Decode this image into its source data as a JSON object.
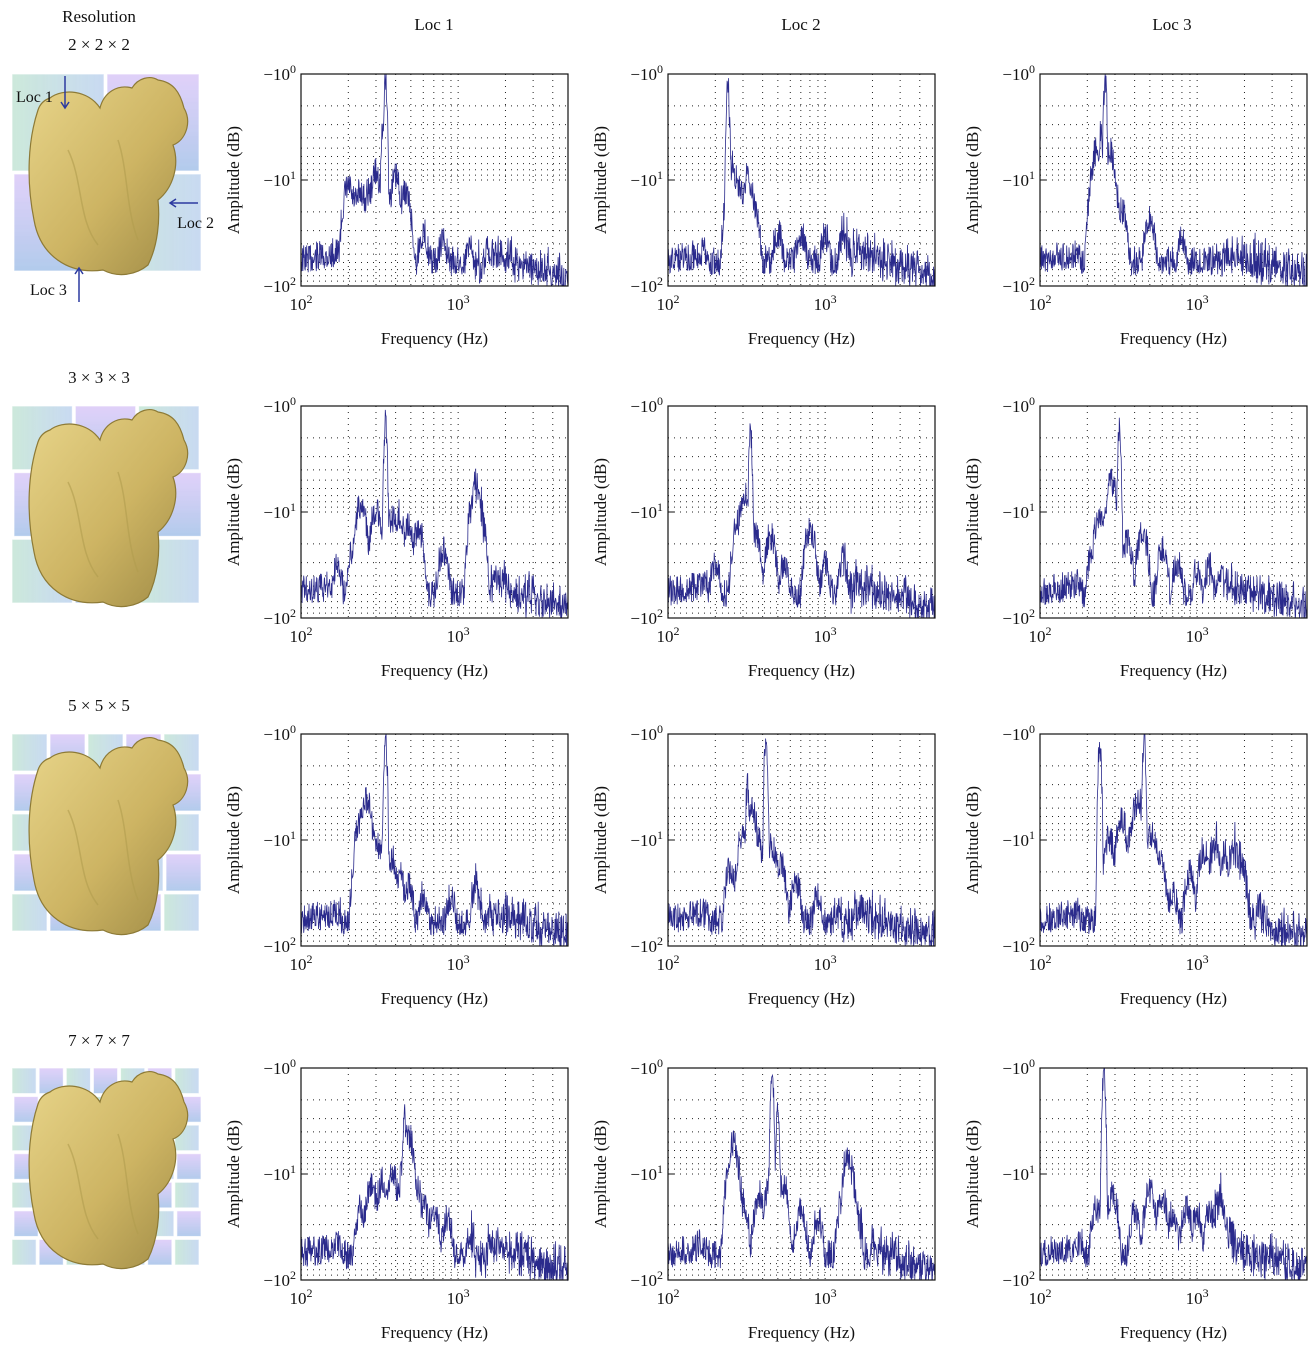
{
  "header": {
    "resolution_label": "Resolution",
    "columns": [
      "Loc 1",
      "Loc 2",
      "Loc 3"
    ]
  },
  "rows": [
    {
      "resolution": "2 × 2 × 2",
      "markers": [
        "Loc 1",
        "Loc 2",
        "Loc 3"
      ]
    },
    {
      "resolution": "3 × 3 × 3",
      "markers": []
    },
    {
      "resolution": "5 × 5 × 5",
      "markers": []
    },
    {
      "resolution": "7 × 7 × 7",
      "markers": []
    }
  ],
  "colors": {
    "series": "#2a2a8c",
    "squirrel": "#cdb463",
    "squirrel_edge": "#8d7a36",
    "grid_blue": "#5a8fd6",
    "grid_green": "#7cc6a0",
    "grid_purple": "#8a63c9"
  },
  "chart_data": [
    {
      "type": "line",
      "row": 0,
      "col": 0,
      "xlabel": "Frequency (Hz)",
      "ylabel": "Amplitude (dB)",
      "xscale": "log",
      "xlim": [
        100,
        5000
      ],
      "ylim_exp": [
        0,
        2
      ],
      "xticks": [
        "10^2",
        "10^3"
      ],
      "yticks": [
        "−10^0",
        "−10^1",
        "−10^2"
      ],
      "grid": true,
      "peaks": [
        [
          200,
          11
        ],
        [
          215,
          14
        ],
        [
          240,
          12
        ],
        [
          270,
          12
        ],
        [
          300,
          8
        ],
        [
          330,
          3.5
        ],
        [
          345,
          1
        ],
        [
          370,
          13
        ],
        [
          400,
          9
        ],
        [
          460,
          12
        ],
        [
          600,
          30
        ],
        [
          800,
          35
        ],
        [
          1200,
          35
        ],
        [
          2000,
          50
        ],
        [
          3500,
          70
        ]
      ]
    },
    {
      "type": "line",
      "row": 0,
      "col": 1,
      "xlabel": "Frequency (Hz)",
      "ylabel": "Amplitude (dB)",
      "xscale": "log",
      "xlim": [
        100,
        5000
      ],
      "ylim_exp": [
        0,
        2
      ],
      "xticks": [
        "10^2",
        "10^3"
      ],
      "yticks": [
        "−10^0",
        "−10^1",
        "−10^2"
      ],
      "grid": true,
      "peaks": [
        [
          240,
          1.2
        ],
        [
          255,
          7
        ],
        [
          280,
          10
        ],
        [
          320,
          9
        ],
        [
          350,
          16
        ],
        [
          500,
          30
        ],
        [
          700,
          30
        ],
        [
          1000,
          32
        ],
        [
          1300,
          28
        ],
        [
          2000,
          50
        ],
        [
          3500,
          70
        ]
      ]
    },
    {
      "type": "line",
      "row": 0,
      "col": 2,
      "xlabel": "Frequency (Hz)",
      "ylabel": "Amplitude (dB)",
      "xscale": "log",
      "xlim": [
        100,
        5000
      ],
      "ylim_exp": [
        0,
        2
      ],
      "xticks": [
        "10^2",
        "10^3"
      ],
      "yticks": [
        "−10^0",
        "−10^1",
        "−10^2"
      ],
      "grid": true,
      "peaks": [
        [
          230,
          5
        ],
        [
          245,
          3
        ],
        [
          260,
          1.1
        ],
        [
          275,
          5
        ],
        [
          300,
          12
        ],
        [
          330,
          18
        ],
        [
          500,
          22
        ],
        [
          800,
          35
        ],
        [
          1300,
          55
        ],
        [
          2500,
          60
        ],
        [
          4000,
          65
        ]
      ]
    },
    {
      "type": "line",
      "row": 1,
      "col": 0,
      "xlabel": "Frequency (Hz)",
      "ylabel": "Amplitude (dB)",
      "xscale": "log",
      "xlim": [
        100,
        5000
      ],
      "ylim_exp": [
        0,
        2
      ],
      "xticks": [
        "10^2",
        "10^3"
      ],
      "yticks": [
        "−10^0",
        "−10^1",
        "−10^2"
      ],
      "grid": true,
      "peaks": [
        [
          170,
          30
        ],
        [
          215,
          22
        ],
        [
          240,
          8
        ],
        [
          300,
          9
        ],
        [
          345,
          1.4
        ],
        [
          380,
          11
        ],
        [
          420,
          10
        ],
        [
          480,
          12
        ],
        [
          560,
          14
        ],
        [
          800,
          22
        ],
        [
          1300,
          5
        ],
        [
          1400,
          12
        ],
        [
          2000,
          40
        ],
        [
          3500,
          60
        ]
      ]
    },
    {
      "type": "line",
      "row": 1,
      "col": 1,
      "xlabel": "Frequency (Hz)",
      "ylabel": "Amplitude (dB)",
      "xscale": "log",
      "xlim": [
        100,
        5000
      ],
      "ylim_exp": [
        0,
        2
      ],
      "xticks": [
        "10^2",
        "10^3"
      ],
      "yticks": [
        "−10^0",
        "−10^1",
        "−10^2"
      ],
      "grid": true,
      "peaks": [
        [
          200,
          30
        ],
        [
          280,
          12
        ],
        [
          310,
          6
        ],
        [
          335,
          1.7
        ],
        [
          360,
          15
        ],
        [
          450,
          16
        ],
        [
          550,
          28
        ],
        [
          800,
          14
        ],
        [
          1000,
          30
        ],
        [
          1300,
          26
        ],
        [
          2000,
          50
        ],
        [
          3500,
          70
        ]
      ]
    },
    {
      "type": "line",
      "row": 1,
      "col": 2,
      "xlabel": "Frequency (Hz)",
      "ylabel": "Amplitude (dB)",
      "xscale": "log",
      "xlim": [
        100,
        5000
      ],
      "ylim_exp": [
        0,
        2
      ],
      "xticks": [
        "10^2",
        "10^3"
      ],
      "yticks": [
        "−10^0",
        "−10^1",
        "−10^2"
      ],
      "grid": true,
      "peaks": [
        [
          160,
          45
        ],
        [
          220,
          20
        ],
        [
          240,
          10
        ],
        [
          285,
          5
        ],
        [
          320,
          1.5
        ],
        [
          360,
          18
        ],
        [
          450,
          15
        ],
        [
          600,
          22
        ],
        [
          750,
          28
        ],
        [
          1000,
          34
        ],
        [
          1200,
          30
        ],
        [
          1400,
          38
        ],
        [
          2000,
          60
        ],
        [
          3500,
          70
        ]
      ]
    },
    {
      "type": "line",
      "row": 2,
      "col": 0,
      "xlabel": "Frequency (Hz)",
      "ylabel": "Amplitude (dB)",
      "xscale": "log",
      "xlim": [
        100,
        5000
      ],
      "ylim_exp": [
        0,
        2
      ],
      "xticks": [
        "10^2",
        "10^3"
      ],
      "yticks": [
        "−10^0",
        "−10^1",
        "−10^2"
      ],
      "grid": true,
      "peaks": [
        [
          240,
          6
        ],
        [
          260,
          4
        ],
        [
          300,
          10
        ],
        [
          330,
          12
        ],
        [
          345,
          1
        ],
        [
          380,
          14
        ],
        [
          420,
          20
        ],
        [
          480,
          25
        ],
        [
          600,
          30
        ],
        [
          900,
          32
        ],
        [
          1300,
          25
        ],
        [
          2000,
          45
        ],
        [
          3500,
          65
        ]
      ]
    },
    {
      "type": "line",
      "row": 2,
      "col": 1,
      "xlabel": "Frequency (Hz)",
      "ylabel": "Amplitude (dB)",
      "xscale": "log",
      "xlim": [
        100,
        5000
      ],
      "ylim_exp": [
        0,
        2
      ],
      "xticks": [
        "10^2",
        "10^3"
      ],
      "yticks": [
        "−10^0",
        "−10^1",
        "−10^2"
      ],
      "grid": true,
      "peaks": [
        [
          250,
          18
        ],
        [
          300,
          8
        ],
        [
          320,
          3
        ],
        [
          340,
          5
        ],
        [
          370,
          9
        ],
        [
          420,
          1
        ],
        [
          460,
          11
        ],
        [
          520,
          16
        ],
        [
          650,
          24
        ],
        [
          900,
          32
        ],
        [
          1200,
          40
        ],
        [
          2000,
          55
        ],
        [
          3500,
          65
        ]
      ]
    },
    {
      "type": "line",
      "row": 2,
      "col": 2,
      "xlabel": "Frequency (Hz)",
      "ylabel": "Amplitude (dB)",
      "xscale": "log",
      "xlim": [
        100,
        5000
      ],
      "ylim_exp": [
        0,
        2
      ],
      "xticks": [
        "10^2",
        "10^3"
      ],
      "yticks": [
        "−10^0",
        "−10^1",
        "−10^2"
      ],
      "grid": true,
      "peaks": [
        [
          240,
          1.1
        ],
        [
          275,
          9
        ],
        [
          330,
          6
        ],
        [
          380,
          8
        ],
        [
          420,
          4
        ],
        [
          460,
          1
        ],
        [
          520,
          8
        ],
        [
          580,
          14
        ],
        [
          700,
          30
        ],
        [
          900,
          20
        ],
        [
          1100,
          12
        ],
        [
          1300,
          10
        ],
        [
          1500,
          14
        ],
        [
          1700,
          10
        ],
        [
          1900,
          14
        ],
        [
          2500,
          45
        ],
        [
          4000,
          60
        ]
      ]
    },
    {
      "type": "line",
      "row": 3,
      "col": 0,
      "xlabel": "Frequency (Hz)",
      "ylabel": "Amplitude (dB)",
      "xscale": "log",
      "xlim": [
        100,
        5000
      ],
      "ylim_exp": [
        0,
        2
      ],
      "xticks": [
        "10^2",
        "10^3"
      ],
      "yticks": [
        "−10^0",
        "−10^1",
        "−10^2"
      ],
      "grid": true,
      "peaks": [
        [
          170,
          40
        ],
        [
          240,
          20
        ],
        [
          280,
          12
        ],
        [
          330,
          11
        ],
        [
          380,
          9
        ],
        [
          430,
          12
        ],
        [
          455,
          2.5
        ],
        [
          480,
          4
        ],
        [
          540,
          12
        ],
        [
          600,
          18
        ],
        [
          700,
          20
        ],
        [
          850,
          25
        ],
        [
          1200,
          35
        ],
        [
          2000,
          55
        ],
        [
          3500,
          70
        ]
      ]
    },
    {
      "type": "line",
      "row": 3,
      "col": 1,
      "xlabel": "Frequency (Hz)",
      "ylabel": "Amplitude (dB)",
      "xscale": "log",
      "xlim": [
        100,
        5000
      ],
      "ylim_exp": [
        0,
        2
      ],
      "xticks": [
        "10^2",
        "10^3"
      ],
      "yticks": [
        "−10^0",
        "−10^1",
        "−10^2"
      ],
      "grid": true,
      "peaks": [
        [
          160,
          40
        ],
        [
          260,
          5
        ],
        [
          300,
          18
        ],
        [
          380,
          15
        ],
        [
          450,
          10
        ],
        [
          460,
          1
        ],
        [
          500,
          2
        ],
        [
          540,
          12
        ],
        [
          700,
          20
        ],
        [
          900,
          25
        ],
        [
          1300,
          14
        ],
        [
          1400,
          6
        ],
        [
          1600,
          22
        ],
        [
          2000,
          45
        ],
        [
          3500,
          70
        ]
      ]
    },
    {
      "type": "line",
      "row": 3,
      "col": 2,
      "xlabel": "Frequency (Hz)",
      "ylabel": "Amplitude (dB)",
      "xscale": "log",
      "xlim": [
        100,
        5000
      ],
      "ylim_exp": [
        0,
        2
      ],
      "xticks": [
        "10^2",
        "10^3"
      ],
      "yticks": [
        "−10^0",
        "−10^1",
        "−10^2"
      ],
      "grid": true,
      "peaks": [
        [
          180,
          40
        ],
        [
          230,
          20
        ],
        [
          255,
          1
        ],
        [
          290,
          15
        ],
        [
          400,
          22
        ],
        [
          500,
          14
        ],
        [
          600,
          16
        ],
        [
          700,
          22
        ],
        [
          850,
          20
        ],
        [
          1000,
          22
        ],
        [
          1200,
          20
        ],
        [
          1400,
          14
        ],
        [
          1600,
          30
        ],
        [
          2500,
          60
        ],
        [
          4000,
          70
        ]
      ]
    }
  ]
}
